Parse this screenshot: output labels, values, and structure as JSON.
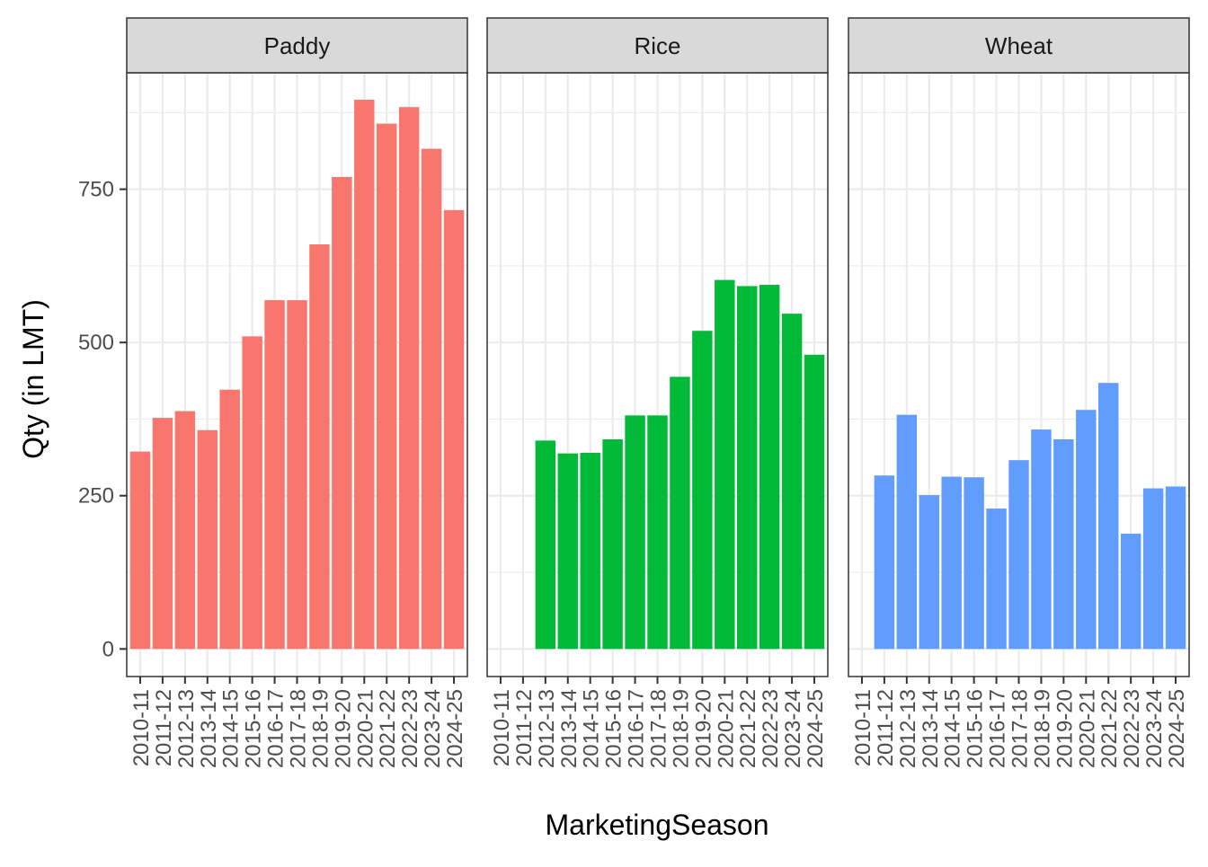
{
  "chart_data": {
    "type": "bar",
    "xlabel": "MarketingSeason",
    "ylabel": "Qty (in LMT)",
    "ylim": [
      -45,
      940
    ],
    "yticks": [
      0,
      250,
      500,
      750
    ],
    "grid": true,
    "legend": "none",
    "categories": [
      "2010-11",
      "2011-12",
      "2012-13",
      "2013-14",
      "2014-15",
      "2015-16",
      "2016-17",
      "2017-18",
      "2018-19",
      "2019-20",
      "2020-21",
      "2021-22",
      "2022-23",
      "2023-24",
      "2024-25"
    ],
    "panels": [
      {
        "name": "Paddy",
        "color": "#F8766D",
        "values": [
          322,
          377,
          388,
          357,
          423,
          510,
          569,
          569,
          660,
          770,
          896,
          857,
          884,
          816,
          716
        ]
      },
      {
        "name": "Rice",
        "color": "#00BA38",
        "values": [
          null,
          null,
          340,
          319,
          320,
          342,
          381,
          381,
          444,
          519,
          602,
          592,
          594,
          547,
          480
        ]
      },
      {
        "name": "Wheat",
        "color": "#619CFF",
        "values": [
          null,
          283,
          382,
          251,
          281,
          280,
          229,
          308,
          358,
          342,
          390,
          434,
          188,
          262,
          265
        ]
      }
    ]
  }
}
